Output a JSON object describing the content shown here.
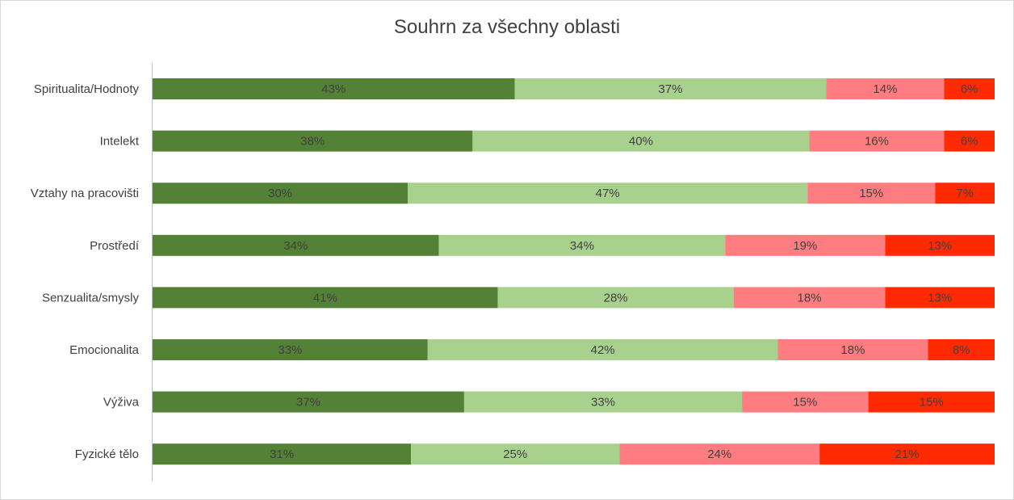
{
  "colors": {
    "series": [
      "#538135",
      "#a9d18e",
      "#ff7c80",
      "#ff2a00"
    ],
    "axis": "#bfbfbf",
    "text": "#404040",
    "border": "#d9d9d9"
  },
  "chart_data": {
    "type": "bar",
    "orientation": "horizontal",
    "stacked": "percent",
    "title": "Souhrn za všechny oblasti",
    "xlabel": "",
    "ylabel": "",
    "grid": false,
    "legend": "none",
    "categories": [
      "Spiritualita/Hodnoty",
      "Intelekt",
      "Vztahy na pracovišti",
      "Prostředí",
      "Senzualita/smysly",
      "Emocionalita",
      "Výživa",
      "Fyzické tělo"
    ],
    "series": [
      {
        "values": [
          43,
          38,
          30,
          34,
          41,
          33,
          37,
          31
        ],
        "labels": [
          "43%",
          "38%",
          "30%",
          "34%",
          "41%",
          "33%",
          "37%",
          "31%"
        ]
      },
      {
        "values": [
          37,
          40,
          47,
          34,
          28,
          42,
          33,
          25
        ],
        "labels": [
          "37%",
          "40%",
          "47%",
          "34%",
          "28%",
          "42%",
          "33%",
          "25%"
        ]
      },
      {
        "values": [
          14,
          16,
          15,
          19,
          18,
          18,
          15,
          24
        ],
        "labels": [
          "14%",
          "16%",
          "15%",
          "19%",
          "18%",
          "18%",
          "15%",
          "24%"
        ]
      },
      {
        "values": [
          6,
          6,
          7,
          13,
          13,
          8,
          15,
          21
        ],
        "labels": [
          "6%",
          "6%",
          "7%",
          "13%",
          "13%",
          "8%",
          "15%",
          "21%"
        ]
      }
    ]
  }
}
